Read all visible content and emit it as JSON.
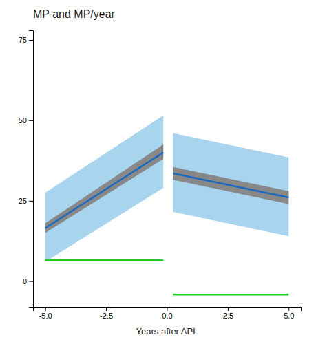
{
  "chart_data": {
    "type": "line",
    "title": "MP and MP/year",
    "xlabel": "Years after APL",
    "xlim": [
      -5.5,
      5.5
    ],
    "ylim": [
      -8,
      78
    ],
    "xticks": [
      {
        "value": -5.0,
        "label": "-5.0"
      },
      -2.5,
      {
        "value": 0.0,
        "label": "0.0"
      },
      2.5,
      {
        "value": 5.0,
        "label": "5.0"
      }
    ],
    "yticks": [
      0,
      25,
      50,
      75
    ],
    "grid": false,
    "series": [
      {
        "type": "band",
        "color": "#a8d4ed",
        "x": [
          -5.0,
          -0.15
        ],
        "low": [
          6.0,
          29.0
        ],
        "high": [
          27.5,
          51.5
        ]
      },
      {
        "type": "band",
        "color": "#888888",
        "x": [
          -5.0,
          -0.15
        ],
        "low": [
          15.0,
          38.0
        ],
        "high": [
          18.0,
          42.5
        ]
      },
      {
        "type": "line",
        "color": "#1a6abf",
        "x": [
          -5.0,
          -0.15
        ],
        "values": [
          16.5,
          40.0
        ]
      },
      {
        "type": "line",
        "color": "#22cc22",
        "x": [
          -5.0,
          -0.15
        ],
        "values": [
          6.5,
          6.5
        ]
      },
      {
        "type": "band",
        "color": "#a8d4ed",
        "x": [
          0.25,
          5.0
        ],
        "low": [
          21.5,
          14.0
        ],
        "high": [
          46.0,
          38.5
        ]
      },
      {
        "type": "band",
        "color": "#888888",
        "x": [
          0.25,
          5.0
        ],
        "low": [
          31.5,
          24.0
        ],
        "high": [
          35.5,
          28.0
        ]
      },
      {
        "type": "line",
        "color": "#1a6abf",
        "x": [
          0.25,
          5.0
        ],
        "values": [
          33.5,
          26.0
        ]
      },
      {
        "type": "line",
        "color": "#22cc22",
        "x": [
          0.25,
          5.0
        ],
        "values": [
          -4.2,
          -4.2
        ]
      }
    ]
  }
}
